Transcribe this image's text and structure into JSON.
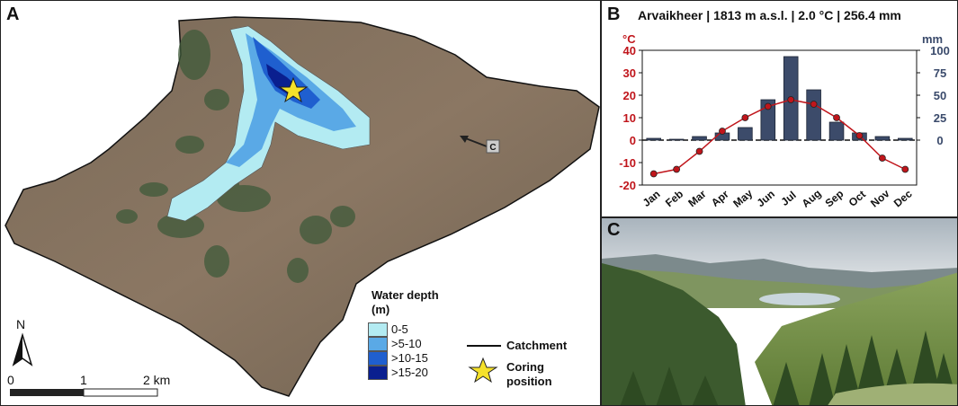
{
  "panel_a": {
    "label": "A",
    "legend_title": "Water depth (m)",
    "depth_classes": [
      {
        "label": "0-5",
        "color": "#b3ebf2"
      },
      {
        "label": ">5-10",
        "color": "#5aa9e6"
      },
      {
        "label": ">10-15",
        "color": "#1f5fcf"
      },
      {
        "label": ">15-20",
        "color": "#0a1f8f"
      }
    ],
    "catchment_label": "Catchment",
    "coring_label_1": "Coring",
    "coring_label_2": "position",
    "north": "N",
    "scale_labels": [
      "0",
      "1",
      "2 km"
    ],
    "marker_label": "C"
  },
  "panel_b": {
    "label": "B",
    "title": "Arvaikheer | 1813 m a.s.l. | 2.0 °C | 256.4 mm",
    "left_unit": "°C",
    "right_unit": "mm",
    "left_color": "#c0151b",
    "right_color": "#3a4a6b"
  },
  "panel_c": {
    "label": "C"
  },
  "chart_data": {
    "type": "bar+line",
    "categories": [
      "Jan",
      "Feb",
      "Mar",
      "Apr",
      "May",
      "Jun",
      "Jul",
      "Aug",
      "Sep",
      "Oct",
      "Nov",
      "Dec"
    ],
    "series": [
      {
        "name": "precipitation",
        "unit": "mm",
        "values": [
          2,
          1,
          4,
          8,
          14,
          45,
          93,
          56,
          20,
          8,
          4,
          2
        ]
      },
      {
        "name": "temperature",
        "unit": "°C",
        "values": [
          -15,
          -13,
          -5,
          4,
          10,
          15,
          18,
          16,
          10,
          2,
          -8,
          -13
        ]
      }
    ],
    "left_ylim": [
      -20,
      40
    ],
    "left_ticks": [
      -20,
      -10,
      0,
      10,
      20,
      30,
      40
    ],
    "right_ylim": [
      0,
      100
    ],
    "right_ticks": [
      0,
      25,
      50,
      75,
      100
    ]
  }
}
